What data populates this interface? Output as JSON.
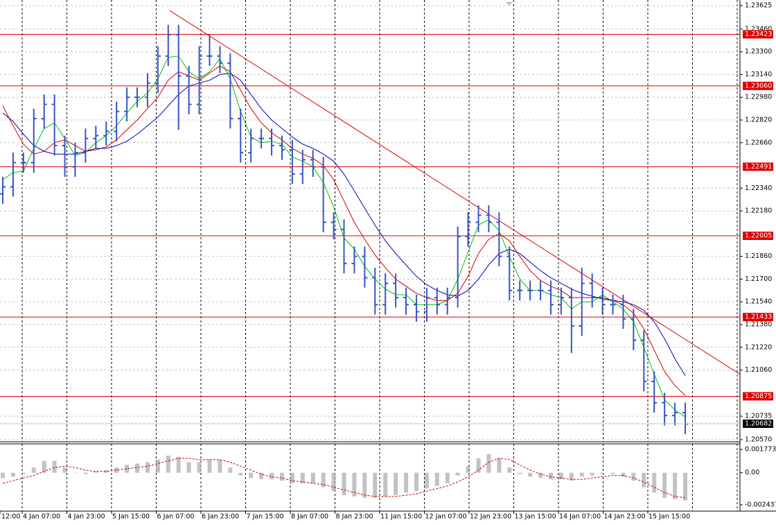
{
  "chart_data": [
    {
      "type": "ohlc",
      "open": [
        1.223,
        1.2235,
        1.2252,
        1.2252,
        1.2283,
        1.2293,
        1.2264,
        1.2249,
        1.2259,
        1.2269,
        1.2271,
        1.2274,
        1.2288,
        1.2298,
        1.2298,
        1.2308,
        1.2327,
        1.2342,
        1.2313,
        1.2293,
        1.2327,
        1.2327,
        1.2322,
        1.2283,
        1.2259,
        1.2269,
        1.2269,
        1.2264,
        1.2261,
        1.2244,
        1.2254,
        1.2249,
        1.221,
        1.2205,
        1.2181,
        1.2186,
        1.2171,
        1.2152,
        1.2167,
        1.2157,
        1.2152,
        1.2147,
        1.2157,
        1.2152,
        1.2157,
        1.22,
        1.221,
        1.2215,
        1.221,
        1.2186,
        1.2162,
        1.2162,
        1.2162,
        1.2162,
        1.2152,
        1.2157,
        1.2137,
        1.2167,
        1.2157,
        1.2152,
        1.2152,
        1.2142,
        1.2127,
        1.2098,
        1.2083,
        1.2074,
        1.2076
      ],
      "high": [
        1.2242,
        1.2259,
        1.2259,
        1.229,
        1.23,
        1.23,
        1.2271,
        1.2266,
        1.2276,
        1.2278,
        1.2281,
        1.2295,
        1.2305,
        1.2305,
        1.2315,
        1.2334,
        1.2349,
        1.2349,
        1.232,
        1.2334,
        1.2342,
        1.2334,
        1.2329,
        1.229,
        1.2276,
        1.2276,
        1.2276,
        1.2271,
        1.2268,
        1.2261,
        1.2261,
        1.2256,
        1.2217,
        1.2212,
        1.2193,
        1.2193,
        1.2178,
        1.2174,
        1.2174,
        1.2164,
        1.2159,
        1.2164,
        1.2164,
        1.2164,
        1.2207,
        1.2217,
        1.2222,
        1.2222,
        1.2217,
        1.2193,
        1.2169,
        1.2169,
        1.2169,
        1.2169,
        1.2164,
        1.2164,
        1.2178,
        1.2174,
        1.2164,
        1.2159,
        1.2159,
        1.2149,
        1.2134,
        1.2105,
        1.209,
        1.2083,
        1.2083
      ],
      "low": [
        1.2223,
        1.2228,
        1.2245,
        1.2245,
        1.2276,
        1.2257,
        1.2242,
        1.2242,
        1.2252,
        1.2262,
        1.2264,
        1.2267,
        1.2281,
        1.2291,
        1.2291,
        1.2301,
        1.232,
        1.2275,
        1.2286,
        1.2286,
        1.232,
        1.2315,
        1.2276,
        1.2252,
        1.2252,
        1.2262,
        1.2257,
        1.2254,
        1.2237,
        1.2237,
        1.2242,
        1.2203,
        1.2198,
        1.2174,
        1.2174,
        1.2164,
        1.2145,
        1.2145,
        1.215,
        1.2145,
        1.214,
        1.214,
        1.2145,
        1.2145,
        1.215,
        1.2193,
        1.2203,
        1.2203,
        1.2179,
        1.2155,
        1.2155,
        1.2155,
        1.2155,
        1.2145,
        1.2145,
        1.2118,
        1.213,
        1.215,
        1.2145,
        1.2145,
        1.2135,
        1.212,
        1.2091,
        1.2076,
        1.2067,
        1.2067,
        1.2061
      ],
      "close": [
        1.2235,
        1.2252,
        1.2252,
        1.2283,
        1.2293,
        1.2264,
        1.2249,
        1.2259,
        1.2269,
        1.2271,
        1.2274,
        1.2288,
        1.2298,
        1.2298,
        1.2308,
        1.2327,
        1.2342,
        1.2313,
        1.2293,
        1.2327,
        1.2327,
        1.2322,
        1.2283,
        1.2259,
        1.2269,
        1.2269,
        1.2264,
        1.2261,
        1.2244,
        1.2254,
        1.2249,
        1.221,
        1.2205,
        1.2181,
        1.2186,
        1.2171,
        1.2152,
        1.2167,
        1.2157,
        1.2152,
        1.2147,
        1.2157,
        1.2152,
        1.2157,
        1.22,
        1.221,
        1.2215,
        1.221,
        1.2186,
        1.2162,
        1.2162,
        1.2162,
        1.2162,
        1.2152,
        1.2157,
        1.2137,
        1.2167,
        1.2157,
        1.2152,
        1.2152,
        1.2142,
        1.2127,
        1.2098,
        1.2083,
        1.2074,
        1.2076,
        1.2068
      ],
      "color": "#3555c0",
      "series": [
        {
          "color": "#00c000",
          "values": [
            1.224,
            1.2245,
            1.2246,
            1.2262,
            1.2276,
            1.228,
            1.2269,
            1.2257,
            1.2259,
            1.2266,
            1.2271,
            1.2278,
            1.2287,
            1.2295,
            1.2301,
            1.2311,
            1.2326,
            1.2327,
            1.2316,
            1.2311,
            1.2316,
            1.2325,
            1.2311,
            1.2288,
            1.227,
            1.2266,
            1.2267,
            1.2265,
            1.2256,
            1.2253,
            1.2249,
            1.2238,
            1.2221,
            1.2199,
            1.2191,
            1.2179,
            1.217,
            1.2163,
            1.2159,
            1.2159,
            1.2152,
            1.2152,
            1.2152,
            1.2155,
            1.217,
            1.2189,
            1.2208,
            1.2212,
            1.2204,
            1.2186,
            1.217,
            1.2162,
            1.2162,
            1.2159,
            1.2157,
            1.2149,
            1.2154,
            1.2154,
            1.2159,
            1.2154,
            1.2149,
            1.214,
            1.2122,
            1.2103,
            1.2085,
            1.2078,
            1.2073
          ]
        },
        {
          "color": "#d00000",
          "values": [
            1.2292,
            1.2278,
            1.2265,
            1.2258,
            1.226,
            1.2266,
            1.2268,
            1.2264,
            1.226,
            1.2261,
            1.2263,
            1.2268,
            1.2275,
            1.2282,
            1.229,
            1.2298,
            1.231,
            1.2316,
            1.2313,
            1.231,
            1.2315,
            1.232,
            1.2316,
            1.2303,
            1.229,
            1.228,
            1.2273,
            1.2268,
            1.2262,
            1.2258,
            1.2255,
            1.225,
            1.224,
            1.2225,
            1.221,
            1.2198,
            1.2187,
            1.2178,
            1.217,
            1.2165,
            1.216,
            1.2157,
            1.2155,
            1.2155,
            1.216,
            1.2172,
            1.2188,
            1.2198,
            1.2202,
            1.2197,
            1.2186,
            1.2176,
            1.2169,
            1.2165,
            1.2162,
            1.2157,
            1.2157,
            1.2157,
            1.2157,
            1.2155,
            1.2152,
            1.2146,
            1.2135,
            1.212,
            1.2105,
            1.2095,
            1.2088
          ]
        },
        {
          "color": "#0000c0",
          "values": [
            1.2287,
            1.2281,
            1.2272,
            1.2264,
            1.226,
            1.2258,
            1.2258,
            1.2258,
            1.226,
            1.2262,
            1.2262,
            1.2264,
            1.2267,
            1.2272,
            1.2278,
            1.2284,
            1.2292,
            1.23,
            1.2306,
            1.2308,
            1.231,
            1.2314,
            1.2315,
            1.231,
            1.23,
            1.229,
            1.2282,
            1.2276,
            1.227,
            1.2265,
            1.2262,
            1.2258,
            1.2253,
            1.2244,
            1.2232,
            1.222,
            1.2208,
            1.2197,
            1.2188,
            1.218,
            1.2172,
            1.2166,
            1.2162,
            1.2159,
            1.2158,
            1.2162,
            1.217,
            1.218,
            1.2188,
            1.2191,
            1.2188,
            1.2182,
            1.2176,
            1.2171,
            1.2167,
            1.2163,
            1.216,
            1.2158,
            1.2156,
            1.2155,
            1.2154,
            1.2152,
            1.2148,
            1.214,
            1.2128,
            1.2114,
            1.2102
          ]
        }
      ],
      "levels": [
        1.23423,
        {
          "value": 1.2306,
          "label": "1.23060"
        },
        1.22491,
        1.22005,
        1.21433,
        1.20875
      ],
      "level_color": "#e00000",
      "current_price": 1.20682,
      "trendline": [
        1.2359,
        1.2103
      ],
      "ylim": [
        1.20555,
        1.2365
      ],
      "yticks": [
        1.23625,
        {
          "value": 1.2346,
          "label": "1.23460"
        },
        {
          "value": 1.233,
          "label": "1.23300"
        },
        {
          "value": 1.2314,
          "label": "1.23140"
        },
        {
          "value": 1.2298,
          "label": "1.22980"
        },
        {
          "value": 1.2282,
          "label": "1.22820"
        },
        {
          "value": 1.2266,
          "label": "1.22660"
        },
        {
          "value": 1.2234,
          "label": "1.22340"
        },
        {
          "value": 1.2218,
          "label": "1.22180"
        },
        {
          "value": 1.2186,
          "label": "1.21860"
        },
        {
          "value": 1.217,
          "label": "1.21700"
        },
        {
          "value": 1.2154,
          "label": "1.21540"
        },
        {
          "value": 1.2138,
          "label": "1.21380"
        },
        {
          "value": 1.2122,
          "label": "1.21220"
        },
        {
          "value": 1.2106,
          "label": "1.21060"
        },
        1.20735,
        {
          "value": 1.2057,
          "label": "1.20570"
        }
      ],
      "grid": true,
      "time_labels": [
        "12:00",
        "4 Jan 07:00",
        "4 Jan 23:00",
        "5 Jan 15:00",
        "6 Jan 07:00",
        "6 Jan 23:00",
        "7 Jan 15:00",
        "8 Jan 07:00",
        "8 Jan 23:00",
        "11 Jan 15:00",
        "12 Jan 07:00",
        "12 Jan 23:00",
        "13 Jan 15:00",
        "14 Jan 07:00",
        "14 Jan 23:00",
        "15 Jan 15:00"
      ]
    },
    {
      "type": "macd",
      "histogram": [
        -0.0004,
        -0.0003,
        -0.0001,
        0.0004,
        0.0009,
        0.0009,
        0.0004,
        0.0,
        -0.0001,
        0.0001,
        0.0002,
        0.0004,
        0.0006,
        0.0007,
        0.0008,
        0.001,
        0.0013,
        0.0012,
        0.0008,
        0.0008,
        0.001,
        0.001,
        0.0004,
        -0.0002,
        -0.0004,
        -0.0005,
        -0.0005,
        -0.0006,
        -0.0008,
        -0.0008,
        -0.0008,
        -0.0011,
        -0.0014,
        -0.0017,
        -0.0018,
        -0.0019,
        -0.0019,
        -0.0018,
        -0.0017,
        -0.0015,
        -0.0014,
        -0.0012,
        -0.001,
        -0.0008,
        -0.0002,
        0.0005,
        0.0011,
        0.0014,
        0.0011,
        0.0004,
        -0.0001,
        -0.0003,
        -0.0004,
        -0.0005,
        -0.0005,
        -0.0006,
        -0.0003,
        -0.0002,
        -0.0001,
        -0.0001,
        -0.0003,
        -0.0006,
        -0.0011,
        -0.0015,
        -0.0019,
        -0.002,
        -0.0021
      ],
      "histogram_color": "#a8a8a8",
      "signal": [
        -0.0008,
        -0.0006,
        -0.0004,
        -0.0002,
        0.0001,
        0.0004,
        0.0005,
        0.0004,
        0.0002,
        0.0001,
        0.0001,
        0.0002,
        0.0003,
        0.0004,
        0.0005,
        0.0007,
        0.0009,
        0.0011,
        0.0011,
        0.001,
        0.001,
        0.001,
        0.0008,
        0.0005,
        0.0002,
        -0.0001,
        -0.0003,
        -0.0004,
        -0.0006,
        -0.0007,
        -0.0008,
        -0.0009,
        -0.0011,
        -0.0013,
        -0.0015,
        -0.0017,
        -0.0018,
        -0.0018,
        -0.0018,
        -0.0017,
        -0.0016,
        -0.0014,
        -0.0012,
        -0.001,
        -0.0007,
        -0.0003,
        0.0002,
        0.0008,
        0.0011,
        0.001,
        0.0006,
        0.0002,
        -0.0001,
        -0.0003,
        -0.0004,
        -0.0005,
        -0.0005,
        -0.0004,
        -0.0003,
        -0.0002,
        -0.0002,
        -0.0004,
        -0.0007,
        -0.0011,
        -0.0015,
        -0.0018,
        -0.0019
      ],
      "signal_color": "#d00000",
      "ylim": [
        -0.00286,
        0.00214
      ],
      "yticks": [
        0.001773,
        {
          "value": 0,
          "label": "0.00"
        },
        -0.002437
      ]
    }
  ]
}
